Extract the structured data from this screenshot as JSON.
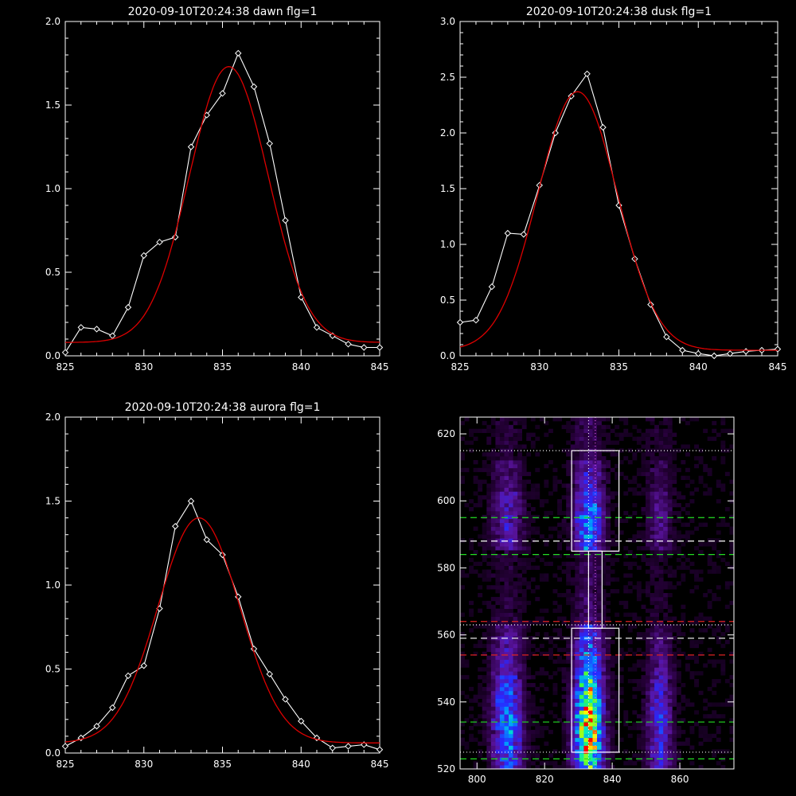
{
  "chart_data": [
    {
      "type": "line",
      "title": "2020-09-10T20:24:38 dawn flg=1",
      "xlim": [
        825,
        845
      ],
      "ylim": [
        0,
        2.0
      ],
      "xticks": [
        825,
        830,
        835,
        840,
        845
      ],
      "xtick_labels": [
        "825",
        "830",
        "835",
        "840",
        "845"
      ],
      "yticks": [
        0,
        0.5,
        1.0,
        1.5,
        2.0
      ],
      "ytick_labels": [
        "0.0",
        "0.5",
        "1.0",
        "1.5",
        "2.0"
      ],
      "series": [
        {
          "style": "line-diamond",
          "color": "#ffffff",
          "x": [
            825,
            826,
            827,
            828,
            829,
            830,
            831,
            832,
            833,
            834,
            835,
            836,
            837,
            838,
            839,
            840,
            841,
            842,
            843,
            844,
            845
          ],
          "y": [
            0.02,
            0.17,
            0.16,
            0.12,
            0.29,
            0.6,
            0.68,
            0.71,
            1.25,
            1.44,
            1.57,
            1.81,
            1.61,
            1.27,
            0.81,
            0.35,
            0.17,
            0.12,
            0.07,
            0.05,
            0.05
          ]
        },
        {
          "style": "gaussian-fit",
          "color": "#dd0000",
          "center": 835.4,
          "amplitude": 1.65,
          "sigma": 2.5,
          "baseline": 0.08
        }
      ]
    },
    {
      "type": "line",
      "title": "2020-09-10T20:24:38 dusk flg=1",
      "xlim": [
        825,
        845
      ],
      "ylim": [
        0,
        3.0
      ],
      "xticks": [
        825,
        830,
        835,
        840,
        845
      ],
      "xtick_labels": [
        "825",
        "830",
        "835",
        "840",
        "845"
      ],
      "yticks": [
        0,
        0.5,
        1.0,
        1.5,
        2.0,
        2.5,
        3.0
      ],
      "ytick_labels": [
        "0.0",
        "0.5",
        "1.0",
        "1.5",
        "2.0",
        "2.5",
        "3.0"
      ],
      "series": [
        {
          "style": "line-diamond",
          "color": "#ffffff",
          "x": [
            825,
            826,
            827,
            828,
            829,
            830,
            831,
            832,
            833,
            834,
            835,
            836,
            837,
            838,
            839,
            840,
            841,
            842,
            843,
            844,
            845
          ],
          "y": [
            0.3,
            0.32,
            0.62,
            1.1,
            1.09,
            1.53,
            2.0,
            2.33,
            2.53,
            2.05,
            1.35,
            0.87,
            0.46,
            0.17,
            0.05,
            0.02,
            0.0,
            0.02,
            0.04,
            0.05,
            0.06
          ]
        },
        {
          "style": "gaussian-fit",
          "color": "#dd0000",
          "center": 832.4,
          "amplitude": 2.32,
          "sigma": 2.5,
          "baseline": 0.05
        }
      ]
    },
    {
      "type": "line",
      "title": "2020-09-10T20:24:38 aurora flg=1",
      "xlim": [
        825,
        845
      ],
      "ylim": [
        0,
        2.0
      ],
      "xticks": [
        825,
        830,
        835,
        840,
        845
      ],
      "xtick_labels": [
        "825",
        "830",
        "835",
        "840",
        "845"
      ],
      "yticks": [
        0,
        0.5,
        1.0,
        1.5,
        2.0
      ],
      "ytick_labels": [
        "0.0",
        "0.5",
        "1.0",
        "1.5",
        "2.0"
      ],
      "series": [
        {
          "style": "line-diamond",
          "color": "#ffffff",
          "x": [
            825,
            826,
            827,
            828,
            829,
            830,
            831,
            832,
            833,
            834,
            835,
            836,
            837,
            838,
            839,
            840,
            841,
            842,
            843,
            844,
            845
          ],
          "y": [
            0.04,
            0.09,
            0.16,
            0.27,
            0.46,
            0.52,
            0.86,
            1.35,
            1.5,
            1.27,
            1.18,
            0.93,
            0.62,
            0.47,
            0.32,
            0.19,
            0.09,
            0.03,
            0.04,
            0.05,
            0.02
          ]
        },
        {
          "style": "gaussian-fit",
          "color": "#dd0000",
          "center": 833.5,
          "amplitude": 1.34,
          "sigma": 2.6,
          "baseline": 0.06
        }
      ]
    },
    {
      "type": "heatmap",
      "xlim": [
        795,
        876
      ],
      "ylim": [
        520,
        625
      ],
      "xticks": [
        800,
        820,
        840,
        860
      ],
      "xtick_labels": [
        "800",
        "820",
        "840",
        "860"
      ],
      "yticks": [
        520,
        540,
        560,
        580,
        600,
        620
      ],
      "ytick_labels": [
        "520",
        "540",
        "560",
        "580",
        "600",
        "620"
      ],
      "emission_columns": [
        {
          "center": 809,
          "width": 3.2,
          "strength": 0.55
        },
        {
          "center": 833,
          "width": 3.0,
          "strength": 1.0
        },
        {
          "center": 854,
          "width": 2.6,
          "strength": 0.4
        }
      ],
      "boxes": [
        {
          "x": [
            828,
            842
          ],
          "y": [
            525,
            562
          ]
        },
        {
          "x": [
            828,
            842
          ],
          "y": [
            585,
            615
          ]
        },
        {
          "x": [
            833,
            837
          ],
          "y": [
            562,
            585
          ]
        }
      ],
      "hlines": [
        {
          "y": 615,
          "color": "#ffffff",
          "style": "dotted"
        },
        {
          "y": 595,
          "color": "#22dd22",
          "style": "dashed"
        },
        {
          "y": 588,
          "color": "#ffffff",
          "style": "dashed"
        },
        {
          "y": 584,
          "color": "#22dd22",
          "style": "dashed"
        },
        {
          "y": 564,
          "color": "#dd2222",
          "style": "dashed"
        },
        {
          "y": 563,
          "color": "#ffffff",
          "style": "dotted"
        },
        {
          "y": 559,
          "color": "#ffffff",
          "style": "dashed"
        },
        {
          "y": 554,
          "color": "#dd2222",
          "style": "dashed"
        },
        {
          "y": 534,
          "color": "#22dd22",
          "style": "dashed"
        },
        {
          "y": 525,
          "color": "#ffffff",
          "style": "dotted"
        },
        {
          "y": 523,
          "color": "#22dd22",
          "style": "dashed"
        }
      ],
      "vlines": [
        {
          "x": 833,
          "color": "#ffffff",
          "style": "dotted"
        },
        {
          "x": 835,
          "color": "#ff66ff",
          "style": "dotted"
        }
      ]
    }
  ]
}
